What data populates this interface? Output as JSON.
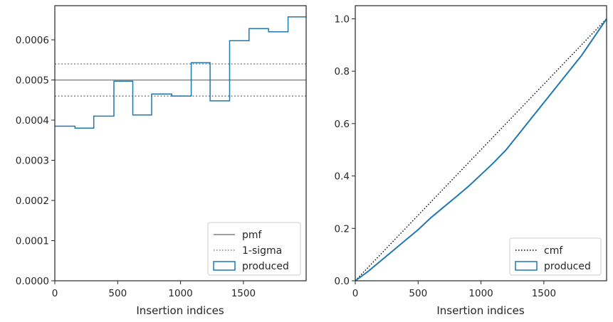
{
  "chart_data": [
    {
      "type": "step",
      "xlabel": "Insertion indices",
      "ylabel": "",
      "xlim": [
        0,
        1999
      ],
      "ylim": [
        0,
        0.000685
      ],
      "xticks": [
        0,
        500,
        1000,
        1500
      ],
      "xtick_labels": [
        "0",
        "500",
        "1000",
        "1500"
      ],
      "yticks": [
        0,
        0.0001,
        0.0002,
        0.0003,
        0.0004,
        0.0005,
        0.0006
      ],
      "ytick_labels": [
        "0.0000",
        "0.0001",
        "0.0002",
        "0.0003",
        "0.0004",
        "0.0005",
        "0.0006"
      ],
      "grid": false,
      "legend_position": "lower-right",
      "reference_lines": [
        {
          "name": "pmf",
          "y": 0.0005,
          "style": "solid",
          "color": "#808080"
        },
        {
          "name": "1-sigma",
          "y": 0.00054,
          "style": "dotted",
          "color": "#808080"
        },
        {
          "name": "1-sigma",
          "y": 0.00046,
          "style": "dotted",
          "color": "#808080"
        }
      ],
      "series": [
        {
          "name": "produced",
          "color": "#1f77b4",
          "bin_edges": [
            0,
            160,
            310,
            470,
            620,
            770,
            930,
            1085,
            1235,
            1390,
            1545,
            1700,
            1855,
            1999
          ],
          "values": [
            0.000385,
            0.00038,
            0.00041,
            0.000497,
            0.000413,
            0.000465,
            0.00046,
            0.000543,
            0.000448,
            0.000598,
            0.000628,
            0.00062,
            0.000657
          ]
        }
      ],
      "legend": [
        {
          "label": "pmf",
          "kind": "line-solid",
          "color": "#808080"
        },
        {
          "label": "1-sigma",
          "kind": "line-dotted",
          "color": "#808080"
        },
        {
          "label": "produced",
          "kind": "patch",
          "color": "#1f77b4"
        }
      ]
    },
    {
      "type": "line",
      "xlabel": "Insertion indices",
      "ylabel": "",
      "xlim": [
        0,
        1999
      ],
      "ylim": [
        0,
        1.05
      ],
      "xticks": [
        0,
        500,
        1000,
        1500
      ],
      "xtick_labels": [
        "0",
        "500",
        "1000",
        "1500"
      ],
      "yticks": [
        0,
        0.2,
        0.4,
        0.6,
        0.8,
        1.0
      ],
      "ytick_labels": [
        "0.0",
        "0.2",
        "0.4",
        "0.6",
        "0.8",
        "1.0"
      ],
      "grid": false,
      "legend_position": "lower-right",
      "series": [
        {
          "name": "cmf",
          "style": "dotted",
          "color": "#000000",
          "x": [
            0,
            1999
          ],
          "y": [
            0,
            1.0
          ]
        },
        {
          "name": "produced",
          "style": "solid",
          "color": "#1f77b4",
          "x": [
            0,
            100,
            200,
            300,
            400,
            500,
            600,
            700,
            800,
            900,
            1000,
            1100,
            1200,
            1300,
            1400,
            1500,
            1600,
            1700,
            1800,
            1900,
            1999
          ],
          "y": [
            0,
            0.035,
            0.075,
            0.115,
            0.155,
            0.195,
            0.24,
            0.28,
            0.32,
            0.36,
            0.405,
            0.45,
            0.5,
            0.56,
            0.62,
            0.68,
            0.74,
            0.8,
            0.86,
            0.93,
            1.0
          ]
        }
      ],
      "legend": [
        {
          "label": "cmf",
          "kind": "line-dotted",
          "color": "#000000"
        },
        {
          "label": "produced",
          "kind": "patch",
          "color": "#1f77b4"
        }
      ]
    }
  ]
}
